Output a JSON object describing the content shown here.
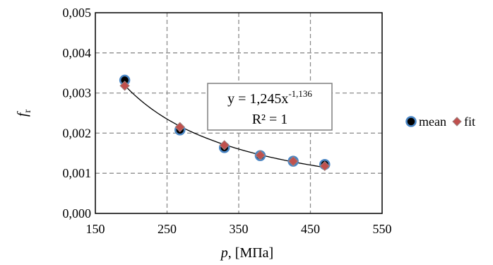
{
  "chart_data": {
    "type": "scatter",
    "title": "",
    "xlabel_var": "p",
    "xlabel_unit": ", [МПа]",
    "ylabel_main": "f",
    "ylabel_sub": "r",
    "xlim": [
      150,
      550
    ],
    "ylim": [
      0,
      0.005
    ],
    "xticks": [
      "150",
      "250",
      "350",
      "450",
      "550"
    ],
    "yticks": [
      "0,000",
      "0,001",
      "0,002",
      "0,003",
      "0,004",
      "0,005"
    ],
    "grid": true,
    "legend_position": "right",
    "series": [
      {
        "name": "mean",
        "marker": "circle",
        "color": "#000000",
        "edge_color": "#4a86c5",
        "x": [
          191,
          268,
          330,
          380,
          426,
          470
        ],
        "y": [
          0.00332,
          0.00208,
          0.00164,
          0.00144,
          0.0013,
          0.00122
        ]
      },
      {
        "name": "fit",
        "marker": "diamond",
        "color": "#c0504d",
        "edge_color": "#9e7f7e",
        "x": [
          191,
          268,
          330,
          380,
          426,
          470
        ],
        "y": [
          0.00318,
          0.00215,
          0.0017,
          0.00145,
          0.0013,
          0.00118
        ]
      }
    ],
    "trendline": {
      "type": "power",
      "coefficient": 1.245,
      "exponent": -1.136,
      "x_range": [
        191,
        470
      ],
      "equation_prefix": "y = 1,245x",
      "equation_exponent": "-1,136",
      "r_squared": "R² = 1"
    }
  }
}
